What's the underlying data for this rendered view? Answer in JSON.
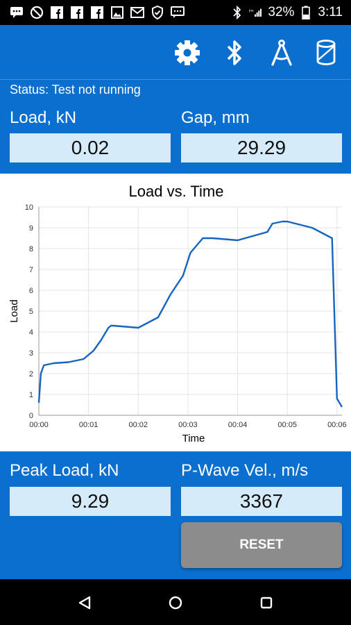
{
  "statusbar": {
    "battery": "32%",
    "time": "3:11"
  },
  "status": {
    "text": "Status: Test not running"
  },
  "load": {
    "label": "Load, kN",
    "value": "0.02"
  },
  "gap": {
    "label": "Gap, mm",
    "value": "29.29"
  },
  "peak": {
    "label": "Peak Load, kN",
    "value": "9.29"
  },
  "pwave": {
    "label": "P-Wave Vel., m/s",
    "value": "3367"
  },
  "reset_label": "RESET",
  "chart_data": {
    "type": "line",
    "title": "Load vs. Time",
    "xlabel": "Time",
    "ylabel": "Load",
    "xlim": [
      0,
      6.1
    ],
    "ylim": [
      0,
      10
    ],
    "x_ticks": [
      "00:00",
      "00:01",
      "00:02",
      "00:03",
      "00:04",
      "00:05",
      "00:06"
    ],
    "y_ticks": [
      "0",
      "1",
      "2",
      "3",
      "4",
      "5",
      "6",
      "7",
      "8",
      "9",
      "10"
    ],
    "grid": true,
    "series": [
      {
        "x": [
          0,
          0.04,
          0.1,
          0.3,
          0.6,
          0.9,
          1.1,
          1.25,
          1.4,
          1.45,
          1.5,
          2.0,
          2.4,
          2.65,
          2.9,
          3.05,
          3.3,
          3.5,
          4.0,
          4.6,
          4.7,
          4.9,
          5.0,
          5.5,
          5.9,
          6.0,
          6.1
        ],
        "y": [
          0.6,
          2.0,
          2.4,
          2.5,
          2.55,
          2.7,
          3.1,
          3.6,
          4.2,
          4.3,
          4.3,
          4.2,
          4.7,
          5.8,
          6.7,
          7.8,
          8.5,
          8.5,
          8.4,
          8.8,
          9.2,
          9.3,
          9.3,
          9.0,
          8.5,
          0.8,
          0.4
        ]
      }
    ]
  }
}
